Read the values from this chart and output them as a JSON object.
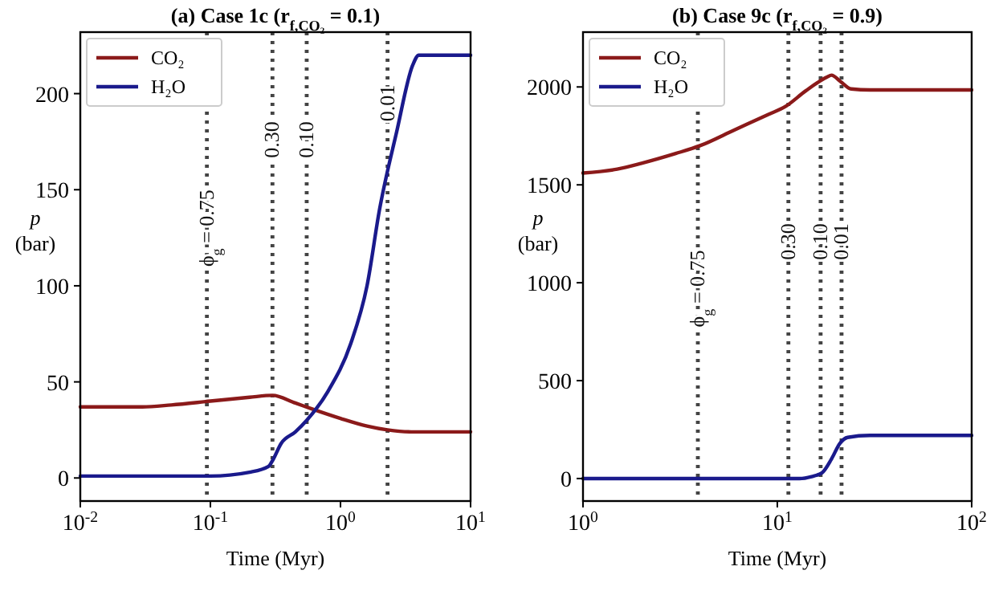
{
  "chart_data": [
    {
      "type": "line",
      "title": "(a) Case 1c (r$_{f,CO₂}$ = 0.1)",
      "xlabel": "Time (Myr)",
      "ylabel": "p (bar)",
      "log": "x",
      "xlim": [
        0.01,
        10
      ],
      "xticks": [
        {
          "value": 0.01,
          "label": "10$^{-2}$"
        },
        {
          "value": 0.1,
          "label": "10$^{-1}$"
        },
        {
          "value": 1,
          "label": "10$^{0}$"
        },
        {
          "value": 10,
          "label": "10$^{1}$"
        }
      ],
      "ylim": [
        -12,
        232
      ],
      "yticks": [
        0,
        50,
        100,
        150,
        200
      ],
      "grid": false,
      "legend": "top left",
      "line_style": "solid",
      "series": [
        {
          "name": "CO₂",
          "color": "#8b1a1a",
          "x": [
            0.01,
            0.03,
            0.05,
            0.1,
            0.2,
            0.3,
            0.45,
            0.6,
            1,
            1.6,
            2.3,
            3.5,
            5,
            10
          ],
          "values": [
            37,
            37,
            38,
            40,
            42,
            43,
            39,
            36,
            31,
            27,
            25,
            24,
            24,
            24
          ]
        },
        {
          "name": "H₂O",
          "color": "#1a1a8c",
          "x": [
            0.01,
            0.05,
            0.1,
            0.2,
            0.28,
            0.3,
            0.35,
            0.45,
            0.55,
            0.8,
            1.2,
            1.6,
            2,
            2.7,
            3.6,
            4,
            10
          ],
          "values": [
            1,
            1,
            1,
            3,
            6,
            9,
            18,
            24,
            30,
            45,
            70,
            100,
            140,
            180,
            215,
            220,
            220
          ]
        }
      ],
      "ref_lines": [
        {
          "axis": "x",
          "value": 0.094,
          "color": "#444444",
          "line_style": "dotted"
        },
        {
          "axis": "x",
          "value": 0.3,
          "color": "#444444",
          "line_style": "dotted"
        },
        {
          "axis": "x",
          "value": 0.55,
          "color": "#444444",
          "line_style": "dotted"
        },
        {
          "axis": "x",
          "value": 2.3,
          "color": "#444444",
          "line_style": "dotted"
        }
      ],
      "annotations": [
        {
          "text": "ϕ$_{g}$ = 0.75",
          "x": 0.094,
          "y": 130
        },
        {
          "text": "0.30",
          "x": 0.3,
          "y": 176
        },
        {
          "text": "0.10",
          "x": 0.55,
          "y": 176
        },
        {
          "text": "0.01",
          "x": 2.3,
          "y": 195
        }
      ]
    },
    {
      "type": "line",
      "title": "(b) Case 9c (r$_{f,CO₂}$ = 0.9)",
      "xlabel": "Time (Myr)",
      "ylabel": "p (bar)",
      "log": "x",
      "xlim": [
        1,
        100
      ],
      "xticks": [
        {
          "value": 1,
          "label": "10$^{0}$"
        },
        {
          "value": 10,
          "label": "10$^{1}$"
        },
        {
          "value": 100,
          "label": "10$^{2}$"
        }
      ],
      "ylim": [
        -115,
        2280
      ],
      "yticks": [
        0,
        500,
        1000,
        1500,
        2000
      ],
      "grid": false,
      "legend": "top left",
      "line_style": "solid",
      "series": [
        {
          "name": "CO₂",
          "color": "#8b1a1a",
          "x": [
            1,
            1.5,
            2,
            3,
            4,
            6,
            9,
            11,
            14,
            18,
            19,
            21,
            24,
            30,
            100
          ],
          "values": [
            1560,
            1580,
            1610,
            1660,
            1700,
            1780,
            1860,
            1900,
            1980,
            2050,
            2060,
            2030,
            1990,
            1985,
            1985
          ]
        },
        {
          "name": "H₂O",
          "color": "#1a1a8c",
          "x": [
            1,
            10,
            13,
            15,
            17,
            19,
            21,
            23,
            30,
            100
          ],
          "values": [
            0,
            0,
            0,
            10,
            30,
            100,
            180,
            210,
            220,
            220
          ]
        }
      ],
      "ref_lines": [
        {
          "axis": "x",
          "value": 3.9,
          "color": "#444444",
          "line_style": "dotted"
        },
        {
          "axis": "x",
          "value": 11.4,
          "color": "#444444",
          "line_style": "dotted"
        },
        {
          "axis": "x",
          "value": 16.7,
          "color": "#444444",
          "line_style": "dotted"
        },
        {
          "axis": "x",
          "value": 21.4,
          "color": "#444444",
          "line_style": "dotted"
        }
      ],
      "annotations": [
        {
          "text": "ϕ$_{g}$ = 0.75",
          "x": 3.9,
          "y": 970
        },
        {
          "text": "0.30",
          "x": 11.4,
          "y": 1210
        },
        {
          "text": "0.10",
          "x": 16.7,
          "y": 1210
        },
        {
          "text": "0.01",
          "x": 21.4,
          "y": 1210
        }
      ]
    }
  ]
}
